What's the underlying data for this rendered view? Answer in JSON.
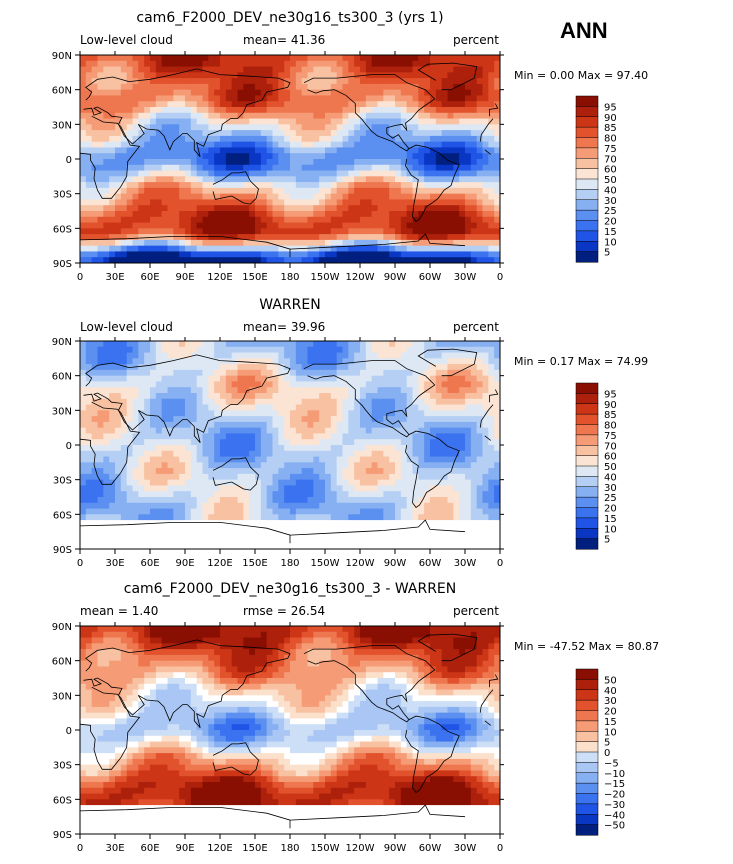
{
  "header": {
    "season": "ANN"
  },
  "colors": {
    "mean_scale": [
      "#001f7f",
      "#0a36c4",
      "#1f54e6",
      "#3a72ef",
      "#5b8ff0",
      "#86b0f2",
      "#b5cff4",
      "#dde8f4",
      "#fbe4d3",
      "#f7c1a2",
      "#f59b76",
      "#ee774f",
      "#e2522d",
      "#cc3616",
      "#ad200b",
      "#8a0f03"
    ],
    "diff_scale": [
      "#001f7f",
      "#0a36c4",
      "#1f54e6",
      "#3a72ef",
      "#5b8ff0",
      "#86b0f2",
      "#a9c6f4",
      "#cddff6",
      "#ffffff",
      "#fbe0cc",
      "#f7c1a2",
      "#f59b76",
      "#ee774f",
      "#e2522d",
      "#cc3616",
      "#ad200b",
      "#8a0f03"
    ],
    "missing": "#ffffff",
    "coastline": "#000000"
  },
  "x_ticks": [
    "0",
    "30E",
    "60E",
    "90E",
    "120E",
    "150E",
    "180",
    "150W",
    "120W",
    "90W",
    "60W",
    "30W",
    "0"
  ],
  "y_ticks": [
    "90N",
    "60N",
    "30N",
    "0",
    "30S",
    "60S",
    "90S"
  ],
  "panels": [
    {
      "title": "cam6_F2000_DEV_ne30g16_ts300_3 (yrs 1)",
      "left_label": "Low-level cloud",
      "center_label": "mean=  41.36",
      "right_label": "percent",
      "range_text": "Min =   0.00 Max =  97.40",
      "colorbar_labels": [
        "95",
        "90",
        "85",
        "80",
        "75",
        "70",
        "60",
        "50",
        "40",
        "30",
        "25",
        "20",
        "15",
        "10",
        "5"
      ]
    },
    {
      "title": "WARREN",
      "left_label": "Low-level cloud",
      "center_label": "mean=  39.96",
      "right_label": "percent",
      "range_text": "Min =   0.17 Max =  74.99",
      "colorbar_labels": [
        "95",
        "90",
        "85",
        "80",
        "75",
        "70",
        "60",
        "50",
        "40",
        "30",
        "25",
        "20",
        "15",
        "10",
        "5"
      ]
    },
    {
      "title": "cam6_F2000_DEV_ne30g16_ts300_3 - WARREN",
      "left_label": "mean =   1.40",
      "center_label": "rmse =  26.54",
      "right_label": "percent",
      "range_text": "Min = -47.52 Max =  80.87",
      "colorbar_labels": [
        "50",
        "40",
        "30",
        "20",
        "15",
        "10",
        "5",
        "0",
        "−5",
        "−10",
        "−15",
        "−20",
        "−30",
        "−40",
        "−50"
      ]
    }
  ],
  "chart_data": [
    {
      "type": "heatmap",
      "title": "cam6_F2000_DEV_ne30g16_ts300_3 (yrs 1)",
      "variable": "Low-level cloud",
      "units": "percent",
      "mean": 41.36,
      "min": 0.0,
      "max": 97.4,
      "x_range": [
        0,
        360
      ],
      "y_range": [
        -90,
        90
      ],
      "contour_levels": [
        5,
        10,
        15,
        20,
        25,
        30,
        40,
        50,
        60,
        70,
        75,
        80,
        85,
        90,
        95
      ],
      "zonal_mean_estimate": {
        "lat": [
          -85,
          -75,
          -65,
          -55,
          -45,
          -35,
          -25,
          -15,
          -5,
          5,
          15,
          25,
          35,
          45,
          55,
          65,
          75,
          85
        ],
        "value": [
          2,
          45,
          85,
          88,
          80,
          68,
          60,
          40,
          25,
          22,
          35,
          45,
          55,
          70,
          78,
          75,
          80,
          85
        ]
      }
    },
    {
      "type": "heatmap",
      "title": "WARREN",
      "variable": "Low-level cloud",
      "units": "percent",
      "mean": 39.96,
      "min": 0.17,
      "max": 74.99,
      "x_range": [
        0,
        360
      ],
      "y_range": [
        -90,
        90
      ],
      "contour_levels": [
        5,
        10,
        15,
        20,
        25,
        30,
        40,
        50,
        60,
        70,
        75,
        80,
        85,
        90,
        95
      ],
      "zonal_mean_estimate": {
        "lat": [
          -85,
          -75,
          -65,
          -55,
          -45,
          -35,
          -25,
          -15,
          -5,
          5,
          15,
          25,
          35,
          45,
          55,
          65,
          75,
          85
        ],
        "value": [
          null,
          null,
          42,
          40,
          40,
          42,
          45,
          42,
          40,
          40,
          42,
          45,
          48,
          52,
          52,
          45,
          40,
          38
        ]
      }
    },
    {
      "type": "heatmap",
      "title": "cam6_F2000_DEV_ne30g16_ts300_3 - WARREN",
      "variable": "Low-level cloud difference",
      "units": "percent",
      "mean": 1.4,
      "rmse": 26.54,
      "min": -47.52,
      "max": 80.87,
      "x_range": [
        0,
        360
      ],
      "y_range": [
        -90,
        90
      ],
      "contour_levels": [
        -50,
        -40,
        -30,
        -20,
        -15,
        -10,
        -5,
        0,
        5,
        10,
        15,
        20,
        30,
        40,
        50
      ],
      "zonal_mean_estimate": {
        "lat": [
          -85,
          -75,
          -65,
          -55,
          -45,
          -35,
          -25,
          -15,
          -5,
          5,
          15,
          25,
          35,
          45,
          55,
          65,
          75,
          85
        ],
        "value": [
          null,
          null,
          45,
          48,
          40,
          25,
          15,
          -2,
          -15,
          -18,
          -7,
          0,
          7,
          18,
          26,
          30,
          40,
          47
        ]
      }
    }
  ]
}
